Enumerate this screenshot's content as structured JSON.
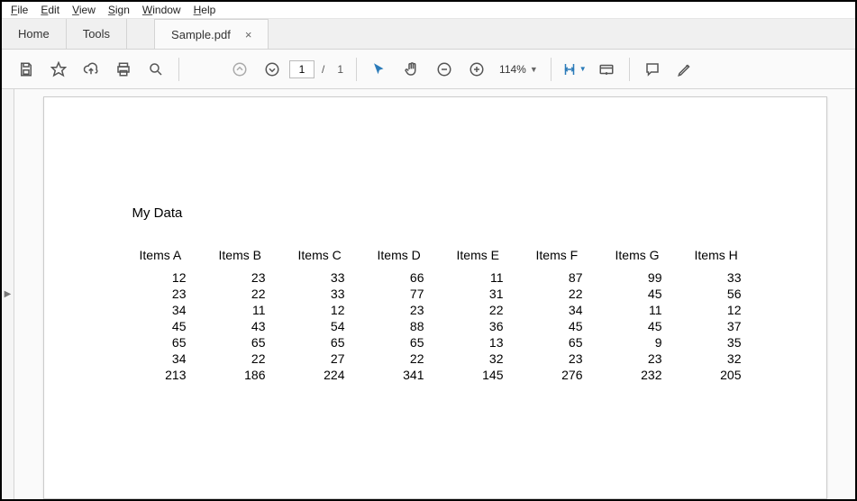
{
  "menubar": {
    "items": [
      "File",
      "Edit",
      "View",
      "Sign",
      "Window",
      "Help"
    ]
  },
  "tabs": {
    "home": "Home",
    "tools": "Tools",
    "active_name": "Sample.pdf"
  },
  "toolbar": {
    "current_page": "1",
    "total_pages": "1",
    "zoom": "114%"
  },
  "document": {
    "title": "My Data",
    "table": {
      "columns": [
        "Items A",
        "Items B",
        "Items C",
        "Items D",
        "Items E",
        "Items F",
        "Items G",
        "Items H"
      ],
      "rows": [
        [
          12,
          23,
          33,
          66,
          11,
          87,
          99,
          33
        ],
        [
          23,
          22,
          33,
          77,
          31,
          22,
          45,
          56
        ],
        [
          34,
          11,
          12,
          23,
          22,
          34,
          11,
          12
        ],
        [
          45,
          43,
          54,
          88,
          36,
          45,
          45,
          37
        ],
        [
          65,
          65,
          65,
          65,
          13,
          65,
          9,
          35
        ],
        [
          34,
          22,
          27,
          22,
          32,
          23,
          23,
          32
        ],
        [
          213,
          186,
          224,
          341,
          145,
          276,
          232,
          205
        ]
      ]
    }
  },
  "colors": {
    "icon": "#555555",
    "accent": "#2b7bb9",
    "border": "#d4d4d4",
    "bg_chrome": "#f0f0f0"
  }
}
